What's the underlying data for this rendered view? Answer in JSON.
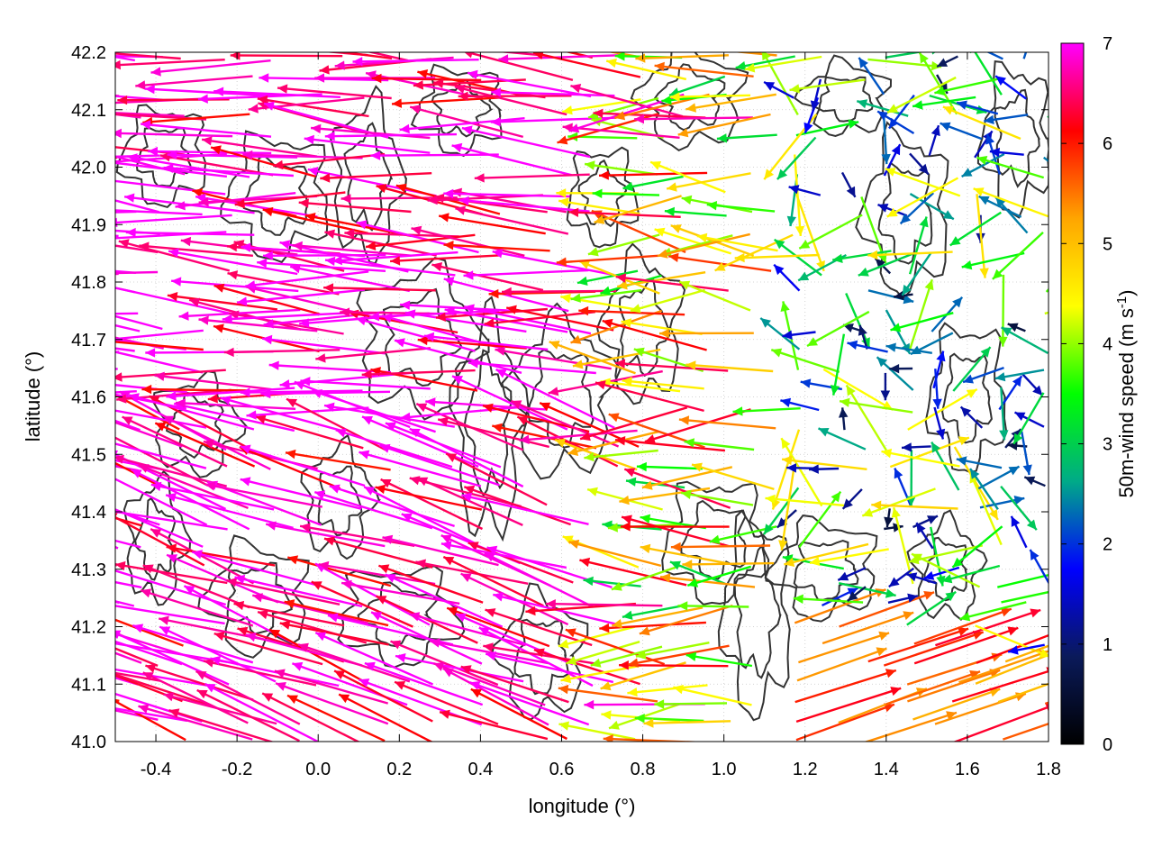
{
  "chart_data": {
    "type": "vector-field",
    "xlabel": "longitude (°)",
    "ylabel": "latitude (°)",
    "colorbar_label": "50m-wind speed (m s",
    "colorbar_label_sup": "-1",
    "colorbar_label_close": ")",
    "xlim": [
      -0.5,
      1.8
    ],
    "ylim": [
      41.0,
      42.2
    ],
    "xticks": [
      "-0.4",
      "-0.2",
      "0.0",
      "0.2",
      "0.4",
      "0.6",
      "0.8",
      "1.0",
      "1.2",
      "1.4",
      "1.6",
      "1.8"
    ],
    "xtick_values": [
      -0.4,
      -0.2,
      0.0,
      0.2,
      0.4,
      0.6,
      0.8,
      1.0,
      1.2,
      1.4,
      1.6,
      1.8
    ],
    "yticks": [
      "41.0",
      "41.1",
      "41.2",
      "41.3",
      "41.4",
      "41.5",
      "41.6",
      "41.7",
      "41.8",
      "41.9",
      "42.0",
      "42.1",
      "42.2"
    ],
    "ytick_values": [
      41.0,
      41.1,
      41.2,
      41.3,
      41.4,
      41.5,
      41.6,
      41.7,
      41.8,
      41.9,
      42.0,
      42.1,
      42.2
    ],
    "colorbar_range": [
      0,
      7
    ],
    "colorbar_ticks": [
      "0",
      "1",
      "2",
      "3",
      "4",
      "5",
      "6",
      "7"
    ],
    "colorbar_stops": [
      "#000000",
      "#0a1a5a",
      "#0000ff",
      "#00aa88",
      "#00ff00",
      "#ffff00",
      "#ffa500",
      "#ff0000",
      "#ff00ff"
    ],
    "grid": true,
    "contour_color": "#333333",
    "wind_description": "Mostly westward flow of ~7 m/s over western part, weaker variable winds east of 1.0°, eastward 5-6 m/s flow in the south-east corner"
  }
}
